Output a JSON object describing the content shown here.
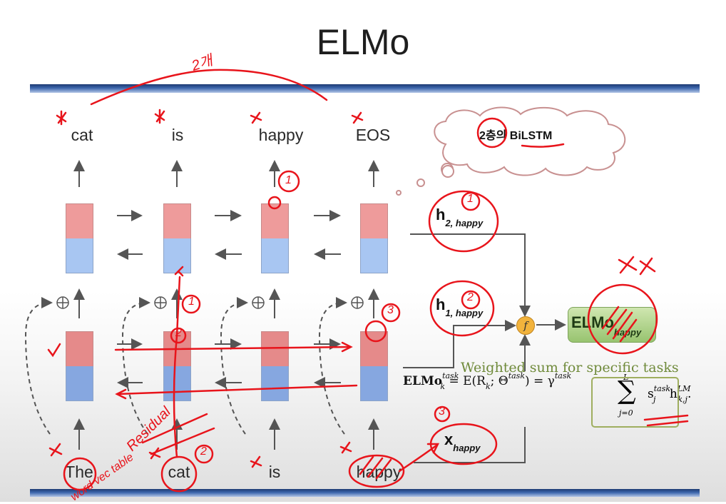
{
  "slide": {
    "title": "ELMo"
  },
  "output_words": [
    "cat",
    "is",
    "happy",
    "EOS"
  ],
  "input_words": [
    "The",
    "cat",
    "is",
    "happy"
  ],
  "labels": {
    "h2": "h",
    "h2_sub": "2, happy",
    "h1": "h",
    "h1_sub": "1, happy",
    "x": "x",
    "x_sub": "happy",
    "f": "f",
    "elmo": "ELMo",
    "elmo_sub": "happy"
  },
  "weighted_sum": "Weighted sum for specific tasks",
  "formula": {
    "lhs": "ELMo",
    "lhs_sup": "task",
    "lhs_sub": "k",
    "mid": "= E(R",
    "mid_sub": "k",
    "mid2": "; Θ",
    "mid2_sup": "task",
    "mid3": ") = γ",
    "gamma_sup": "task",
    "sum_top": "L",
    "sum_bottom": "j=0",
    "s": "s",
    "s_sup": "task",
    "s_sub": "j",
    "h": "h",
    "h_sup": "LM",
    "h_sub": "k,j",
    "end": "."
  },
  "annotations": {
    "cloud": "2층의 BiLSTM",
    "top_note": "2개",
    "residual": "Residual",
    "word_table": "word vec table",
    "num_1a": "1",
    "num_1b": "1",
    "num_2a": "2",
    "num_1c": "1",
    "num_2b": "2",
    "num_3a": "3",
    "num_3b": "3",
    "num_2c": "2"
  },
  "colors": {
    "accent_bar": "#2a4f91",
    "lstm_red": "#ee9b9b",
    "lstm_blue": "#a8c6f2",
    "elmo_green": "#98c470",
    "combine_orange": "#f2b33c",
    "ink_red": "#e8141b"
  }
}
